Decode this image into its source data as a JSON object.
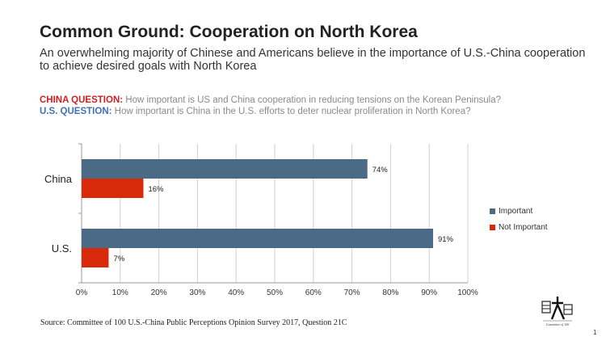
{
  "title": "Common Ground: Cooperation on North Korea",
  "subtitle": "An overwhelming majority of Chinese and Americans believe in the importance of U.S.-China cooperation to achieve desired goals with North Korea",
  "questions": {
    "china_label": "CHINA QUESTION:",
    "china_text": " How important is US and China cooperation in reducing tensions on the Korean Peninsula?",
    "us_label": "U.S. QUESTION:",
    "us_text": " How important is China in the U.S. efforts to deter nuclear proliferation in North Korea?"
  },
  "chart_data": {
    "type": "bar",
    "orientation": "horizontal",
    "categories": [
      "China",
      "U.S."
    ],
    "series": [
      {
        "name": "Important",
        "values": [
          74,
          91
        ],
        "color": "#4a6a85"
      },
      {
        "name": "Not Important",
        "values": [
          16,
          7
        ],
        "color": "#d9290b"
      }
    ],
    "value_labels": [
      [
        "74%",
        "91%"
      ],
      [
        "16%",
        "7%"
      ]
    ],
    "xlim": [
      0,
      100
    ],
    "xticks": [
      "0%",
      "10%",
      "20%",
      "30%",
      "40%",
      "50%",
      "60%",
      "70%",
      "80%",
      "90%",
      "100%"
    ],
    "grid": true,
    "legend_position": "right"
  },
  "source": "Source: Committee of 100 U.S.-China Public Perceptions Opinion Survey 2017, Question 21C",
  "page_number": "1",
  "logo": {
    "caption": "Committee of 100"
  }
}
